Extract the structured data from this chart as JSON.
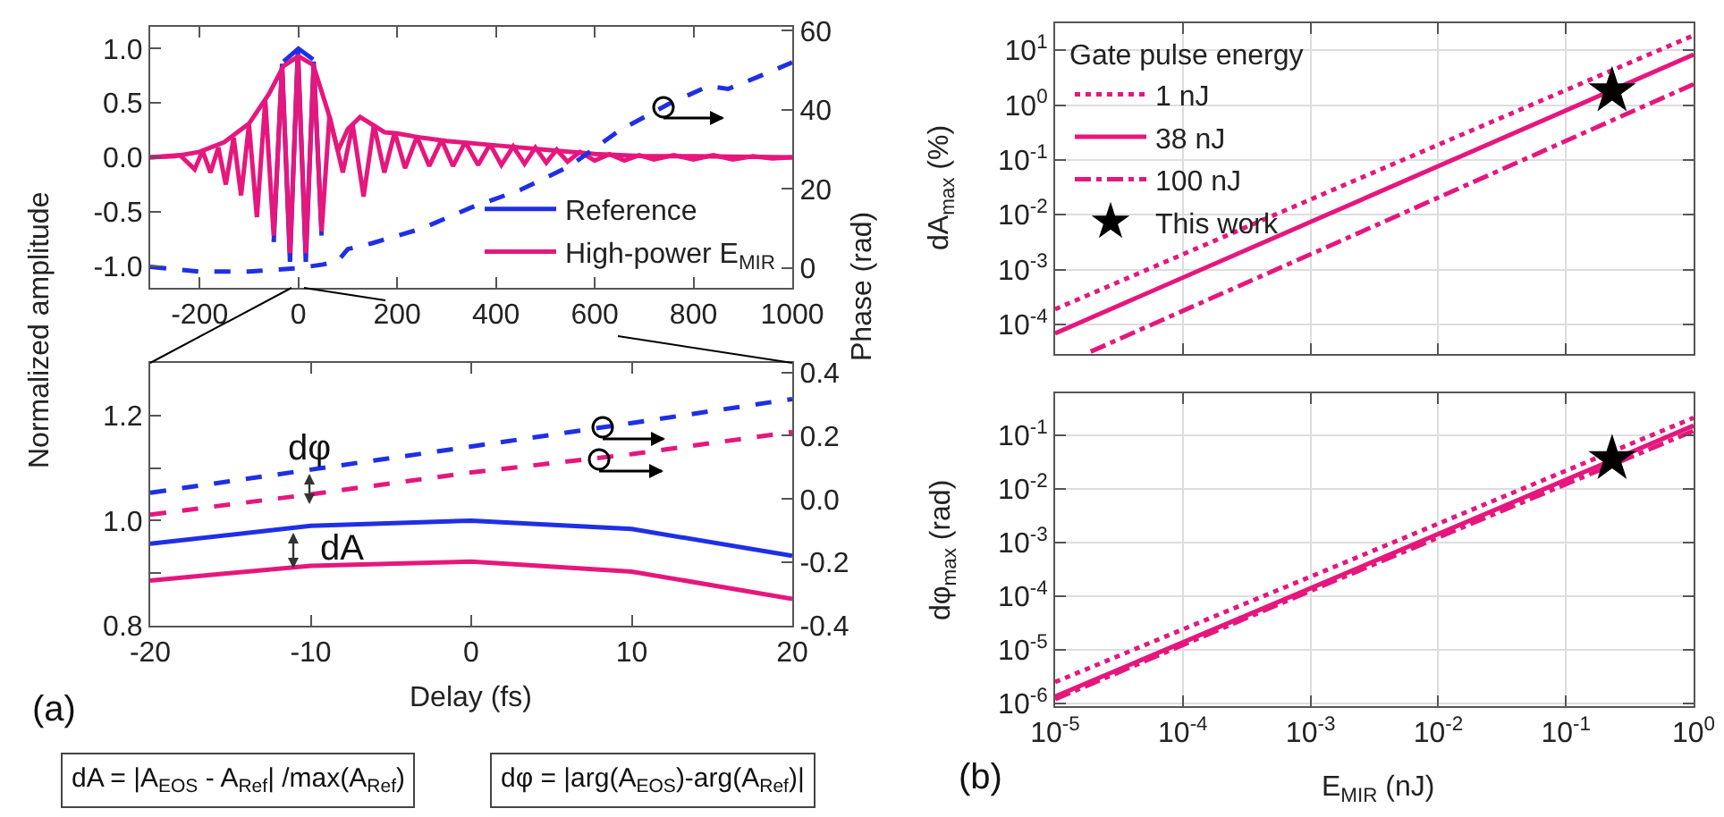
{
  "chart_data": [
    {
      "type": "line",
      "ylabel": "Normalized amplitude",
      "y2label": "Phase (rad)",
      "x": [
        -300,
        -250,
        -200,
        -150,
        -100,
        -60,
        -30,
        0,
        30,
        60,
        80,
        100,
        125,
        150,
        175,
        200,
        250,
        300,
        400,
        500,
        600,
        700,
        800,
        1000
      ],
      "xlim": [
        -300,
        1000
      ],
      "xticks": [
        -200,
        0,
        200,
        400,
        600,
        800,
        1000
      ],
      "ylim": [
        -1.2,
        1.2
      ],
      "yticks": [
        {
          "value": -1,
          "label": "-1.0"
        },
        {
          "value": -0.5,
          "label": "-0.5"
        },
        {
          "value": 0,
          "label": "0.0"
        },
        {
          "value": 0.5,
          "label": "0.5"
        },
        {
          "value": 1,
          "label": "1.0"
        }
      ],
      "y2lim": [
        -5,
        61
      ],
      "y2ticks": [
        0,
        20,
        40,
        60
      ],
      "legend": "bottom right",
      "series": [
        {
          "color": "#1f2fe6",
          "x": [
            -30,
            0,
            30
          ],
          "values": [
            0.88,
            1.0,
            0.9
          ]
        },
        {
          "name": "Reference",
          "color": "#1f2fe6",
          "x": [
            -50,
            -33,
            -17,
            -1,
            15,
            31,
            47
          ],
          "values": [
            -0.78,
            0.86,
            -0.96,
            1.0,
            -0.96,
            0.88,
            -0.72
          ]
        },
        {
          "color": "#e5177d",
          "values": [
            0,
            0.01,
            0.05,
            0.14,
            0.31,
            0.58,
            0.84,
            0.93,
            0.85,
            0.42,
            0.06,
            0.26,
            0.37,
            0.3,
            0.23,
            0.22,
            0.18,
            0.15,
            0.11,
            0.07,
            0.03,
            0.01,
            0.01,
            0
          ]
        },
        {
          "name": "High-power E$_{MIR}$",
          "color": "#e5177d",
          "x": [
            -300,
            -240,
            -210,
            -194,
            -178,
            -162,
            -147,
            -131,
            -116,
            -100,
            -84,
            -67,
            -50,
            -33,
            -17,
            -1,
            15,
            31,
            47,
            63,
            90,
            110,
            132,
            153,
            174,
            195,
            216,
            240,
            265,
            290,
            313,
            338,
            364,
            388,
            411,
            435,
            458,
            480,
            502,
            523,
            545,
            570,
            600,
            630,
            660,
            690,
            720,
            760,
            800,
            840,
            880,
            920,
            960,
            1000
          ],
          "values": [
            0,
            0.02,
            -0.11,
            0.06,
            -0.14,
            0.09,
            -0.25,
            0.18,
            -0.35,
            0.3,
            -0.55,
            0.52,
            -0.72,
            0.83,
            -0.88,
            0.93,
            -0.88,
            0.84,
            -0.68,
            0.38,
            -0.14,
            0.3,
            -0.36,
            0.3,
            -0.14,
            0.23,
            -0.1,
            0.19,
            -0.08,
            0.16,
            -0.08,
            0.14,
            -0.07,
            0.12,
            -0.07,
            0.1,
            -0.06,
            0.09,
            -0.05,
            0.07,
            -0.04,
            0.05,
            -0.03,
            0.03,
            -0.03,
            0.02,
            -0.02,
            0.02,
            -0.02,
            0.02,
            -0.02,
            0.01,
            -0.01,
            0
          ]
        },
        {
          "color": "#1f2fe6",
          "axis": "y2",
          "line_style": "dashed",
          "x": [
            -300,
            -200,
            -100,
            0,
            50,
            80,
            100,
            150,
            250,
            350,
            450,
            550,
            650,
            750,
            830,
            870,
            930,
            1000
          ],
          "values": [
            0.3,
            -0.9,
            -0.9,
            0,
            0.9,
            1.8,
            4.8,
            6.3,
            10,
            15.3,
            19.8,
            25.8,
            34.8,
            41.5,
            46,
            45.3,
            48.3,
            52
          ]
        }
      ]
    },
    {
      "type": "line",
      "xlabel": "Delay (fs)",
      "x": [
        -20,
        -10,
        0,
        10,
        20
      ],
      "xlim": [
        -20,
        20
      ],
      "xticks": [
        -20,
        -10,
        0,
        10,
        20
      ],
      "ylim": [
        0.8,
        1.3
      ],
      "yticks": [
        {
          "value": 0.8,
          "label": "0.8"
        },
        {
          "value": 0.9,
          "label": null
        },
        {
          "value": 1,
          "label": "1.0"
        },
        {
          "value": 1.1,
          "label": null
        },
        {
          "value": 1.2,
          "label": "1.2"
        }
      ],
      "y2lim": [
        -0.4,
        0.43
      ],
      "y2ticks": [
        {
          "value": -0.4,
          "label": "-0.4"
        },
        {
          "value": -0.2,
          "label": "-0.2"
        },
        {
          "value": 0,
          "label": "0.0"
        },
        {
          "value": 0.2,
          "label": "0.2"
        },
        {
          "value": 0.4,
          "label": "0.4"
        }
      ],
      "annotations": [
        "dφ",
        "dA",
        "(a)",
        "dA = |A$_{EOS}$ - A$_{Ref}$| /max(A$_{Ref}$)",
        "dφ = |arg(A$_{EOS}$)-arg(A$_{Ref}$)|"
      ],
      "series": [
        {
          "color": "#1f2fe6",
          "values": [
            0.956,
            0.99,
            1.0,
            0.984,
            0.933
          ]
        },
        {
          "color": "#e5177d",
          "values": [
            0.886,
            0.914,
            0.922,
            0.903,
            0.851
          ]
        },
        {
          "color": "#1f2fe6",
          "axis": "y2",
          "line_style": "dashed",
          "values": [
            0.02,
            0.093,
            0.166,
            0.24,
            0.316
          ]
        },
        {
          "color": "#e5177d",
          "axis": "y2",
          "line_style": "dashed",
          "values": [
            -0.049,
            0.015,
            0.084,
            0.142,
            0.212
          ]
        }
      ]
    },
    {
      "type": "line",
      "ylabel": "dA$_{max}$ (%)",
      "log": "xy",
      "grid": true,
      "legend": "top left",
      "legend_title": "Gate pulse energy",
      "tick_labels": "y",
      "xlim": [
        1e-05,
        1
      ],
      "xticks": [
        {
          "value": 1e-05,
          "label": null
        },
        {
          "value": 0.0001,
          "label": null
        },
        {
          "value": 0.001,
          "label": null
        },
        {
          "value": 0.01,
          "label": null
        },
        {
          "value": 0.1,
          "label": null
        },
        {
          "value": 1,
          "label": null
        }
      ],
      "ylim": [
        2.9e-05,
        31
      ],
      "yticks": [
        {
          "value": 0.0001,
          "label": "10$^{-4}$"
        },
        {
          "value": 0.001,
          "label": "10$^{-3}$"
        },
        {
          "value": 0.01,
          "label": "10$^{-2}$"
        },
        {
          "value": 0.1,
          "label": "10$^{-1}$"
        },
        {
          "value": 1,
          "label": "10$^{0}$"
        },
        {
          "value": 10,
          "label": "10$^{1}$"
        }
      ],
      "series": [
        {
          "name": "1 nJ",
          "color": "#e5177d",
          "line_style": "dotted",
          "x": [
            1e-05,
            0.001,
            1
          ],
          "values": [
            0.00019,
            0.019,
            18.6
          ]
        },
        {
          "name": "38 nJ",
          "color": "#e5177d",
          "line_style": "solid",
          "x": [
            1e-05,
            0.001,
            1
          ],
          "values": [
            6.9e-05,
            0.0074,
            8.3
          ]
        },
        {
          "name": "100 nJ",
          "color": "#e5177d",
          "line_style": "dashdot",
          "x": [
            1.9e-05,
            0.001,
            1
          ],
          "values": [
            3.2e-05,
            0.0019,
            2.4
          ]
        },
        {
          "name": "This work",
          "type": "scatter",
          "marker": "star",
          "color": "#000000",
          "x": [
            0.23
          ],
          "values": [
            1.8
          ]
        }
      ]
    },
    {
      "type": "line",
      "xlabel": "E$_{MIR}$ (nJ)",
      "ylabel": "dφ$_{max}$ (rad)",
      "log": "xy",
      "grid": true,
      "xlim": [
        1e-05,
        1
      ],
      "xticks": [
        {
          "value": 1e-05,
          "label": "10$^{-5}$"
        },
        {
          "value": 0.0001,
          "label": "10$^{-4}$"
        },
        {
          "value": 0.001,
          "label": "10$^{-3}$"
        },
        {
          "value": 0.01,
          "label": "10$^{-2}$"
        },
        {
          "value": 0.1,
          "label": "10$^{-1}$"
        },
        {
          "value": 1,
          "label": "10$^{0}$"
        }
      ],
      "ylim": [
        8.9e-07,
        0.6
      ],
      "yticks": [
        {
          "value": 1e-06,
          "label": "10$^{-6}$"
        },
        {
          "value": 1e-05,
          "label": "10$^{-5}$"
        },
        {
          "value": 0.0001,
          "label": "10$^{-4}$"
        },
        {
          "value": 0.001,
          "label": "10$^{-3}$"
        },
        {
          "value": 0.01,
          "label": "10$^{-2}$"
        },
        {
          "value": 0.1,
          "label": "10$^{-1}$"
        }
      ],
      "annotations": [
        "(b)"
      ],
      "series": [
        {
          "color": "#e5177d",
          "line_style": "dotted",
          "x": [
            1e-05,
            0.001,
            1
          ],
          "values": [
            2.5e-06,
            0.00023,
            0.21
          ]
        },
        {
          "color": "#e5177d",
          "line_style": "solid",
          "x": [
            1e-05,
            0.001,
            1
          ],
          "values": [
            1.35e-06,
            0.00014,
            0.15
          ]
        },
        {
          "color": "#e5177d",
          "line_style": "dashdot",
          "x": [
            1e-05,
            0.001,
            1
          ],
          "values": [
            1.2e-06,
            0.000125,
            0.12
          ]
        },
        {
          "type": "scatter",
          "marker": "star",
          "color": "#000000",
          "x": [
            0.23
          ],
          "values": [
            0.036
          ]
        }
      ]
    }
  ]
}
